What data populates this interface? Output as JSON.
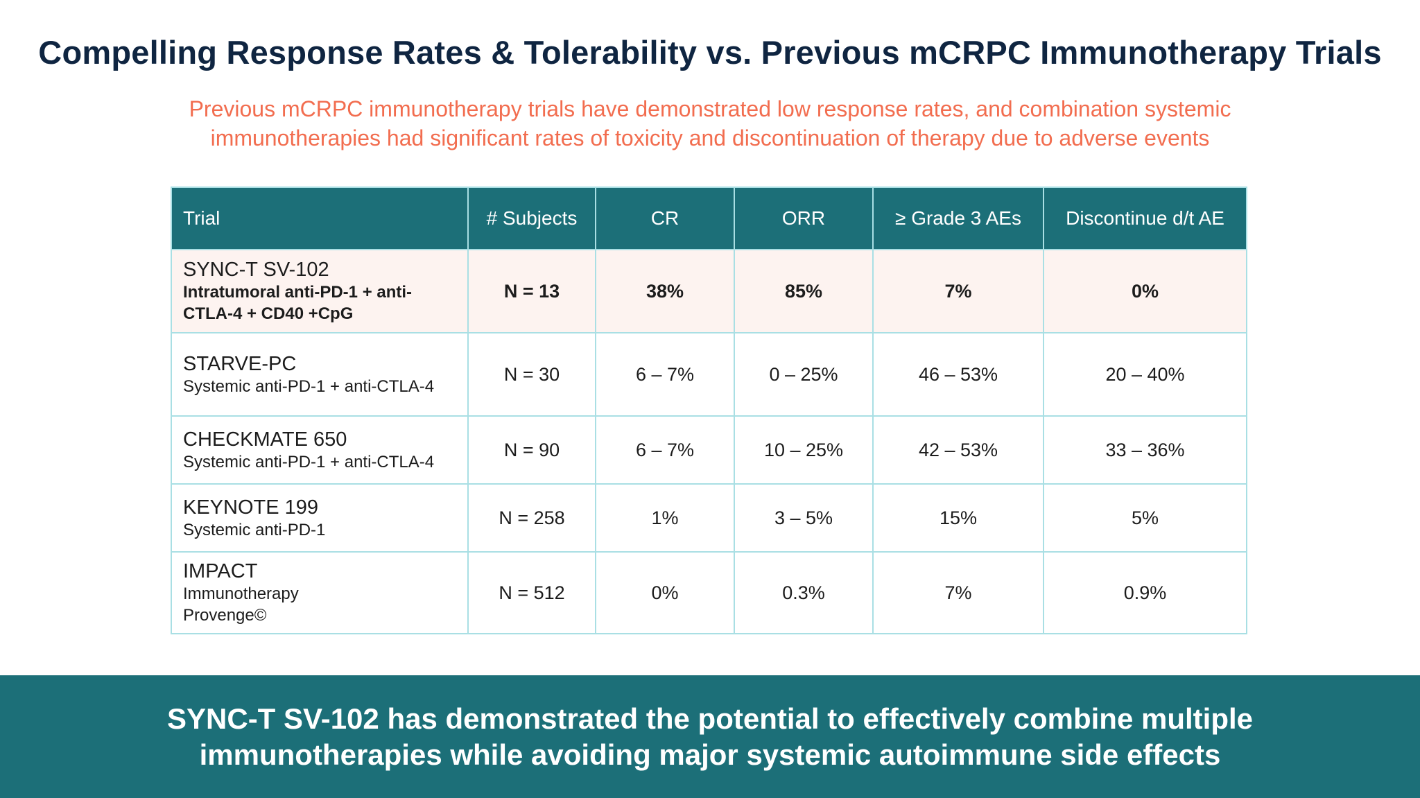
{
  "title": "Compelling Response Rates & Tolerability vs. Previous mCRPC Immunotherapy Trials",
  "subtitle": {
    "line1": "Previous mCRPC immunotherapy trials have demonstrated low response rates, and combination systemic",
    "line2": "immunotherapies had significant rates of toxicity and discontinuation of therapy due to adverse events"
  },
  "table": {
    "headers": [
      "Trial",
      "# Subjects",
      "CR",
      "ORR",
      "≥ Grade 3 AEs",
      "Discontinue d/t AE"
    ],
    "rows": [
      {
        "name": "SYNC-T SV-102",
        "desc": [
          "Intratumoral anti-PD-1 + anti-",
          "CTLA-4 + CD40 +CpG"
        ],
        "subjects": "N = 13",
        "cr": "38%",
        "orr": "85%",
        "ae3": "7%",
        "disc": "0%"
      },
      {
        "name": "STARVE-PC",
        "desc": [
          "Systemic anti-PD-1 + anti-CTLA-4"
        ],
        "subjects": "N = 30",
        "cr": "6 – 7%",
        "orr": "0 – 25%",
        "ae3": "46 – 53%",
        "disc": "20 – 40%"
      },
      {
        "name": "CHECKMATE 650",
        "desc": [
          "Systemic anti-PD-1 + anti-CTLA-4"
        ],
        "subjects": "N = 90",
        "cr": "6 – 7%",
        "orr": "10 – 25%",
        "ae3": "42 – 53%",
        "disc": "33 – 36%"
      },
      {
        "name": "KEYNOTE 199",
        "desc": [
          "Systemic anti-PD-1"
        ],
        "subjects": "N = 258",
        "cr": "1%",
        "orr": "3 – 5%",
        "ae3": "15%",
        "disc": "5%"
      },
      {
        "name": "IMPACT",
        "desc": [
          "Immunotherapy",
          "Provenge©"
        ],
        "subjects": "N = 512",
        "cr": "0%",
        "orr": "0.3%",
        "ae3": "7%",
        "disc": "0.9%"
      }
    ]
  },
  "footer": {
    "line1": "SYNC-T SV-102 has demonstrated the potential to effectively combine multiple",
    "line2": "immunotherapies while avoiding major systemic autoimmune side effects"
  },
  "colors": {
    "title": "#0f2541",
    "subtitle": "#f26d4f",
    "header_bg": "#1c6f78",
    "grid": "#a9dfe4",
    "highlight_row": "#fdf3f0",
    "footer_bg": "#1c6f78"
  }
}
